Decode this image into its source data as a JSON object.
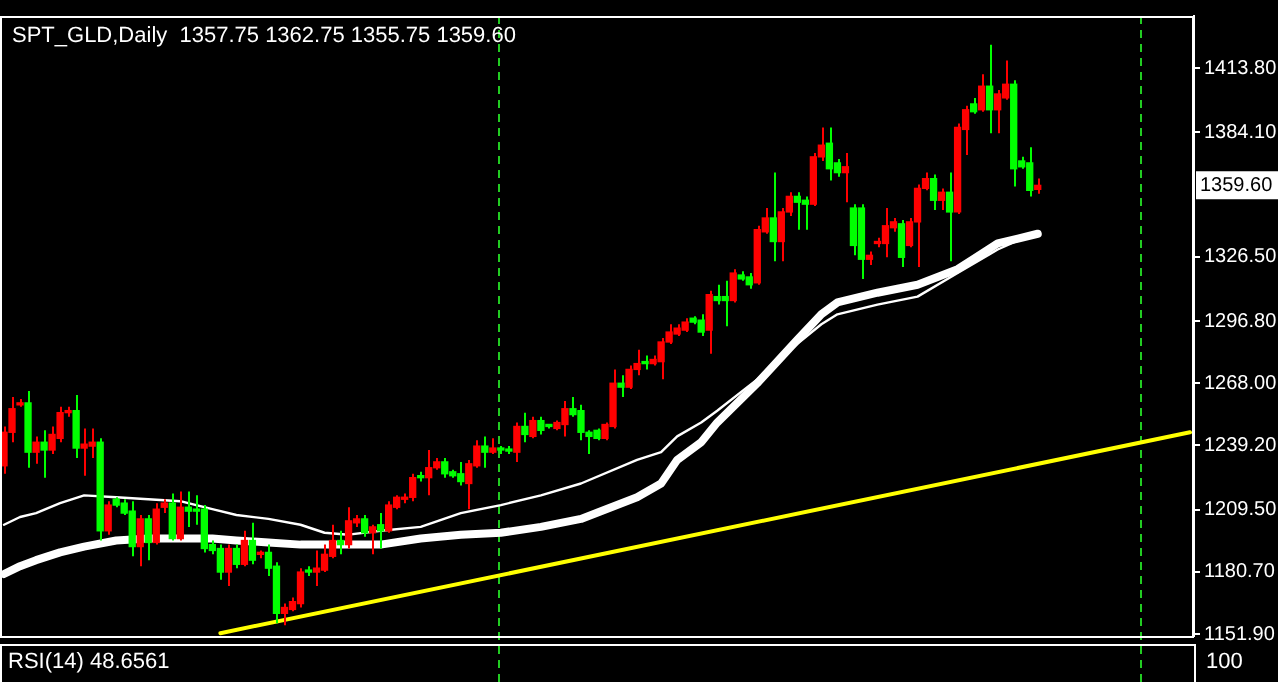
{
  "chart_data": {
    "type": "candlestick",
    "title": "SPT_GLD,Daily  1357.75 1362.75 1355.75 1359.60",
    "categories": [
      null,
      null,
      null,
      null,
      null,
      null,
      null,
      null,
      null,
      null,
      null,
      null,
      null,
      null,
      null,
      null,
      null,
      null,
      null,
      null,
      null,
      null,
      null,
      null,
      null,
      null,
      null,
      null,
      null,
      null,
      null,
      null,
      null,
      null,
      null,
      null,
      null,
      null,
      null,
      null,
      null,
      null,
      null,
      null,
      null,
      null,
      null,
      null,
      null,
      null,
      null,
      null,
      null,
      null,
      null,
      null,
      null,
      null,
      null,
      null,
      null,
      null,
      null,
      null,
      null,
      null,
      null,
      null,
      null,
      null,
      null,
      null,
      null,
      null,
      null,
      null,
      null,
      null,
      null,
      null,
      null,
      null,
      null,
      null,
      null,
      null,
      null,
      null,
      null,
      null,
      null,
      null,
      null,
      null,
      null,
      null,
      null,
      null,
      null,
      null,
      null,
      null,
      null,
      null,
      null,
      null,
      null,
      null,
      null,
      null,
      null,
      null,
      null,
      null,
      null,
      null,
      null,
      null,
      null,
      null,
      null,
      null,
      null,
      null,
      null,
      null,
      null,
      null,
      null,
      null,
      null,
      null,
      null,
      null,
      null,
      null,
      null,
      null,
      null,
      null,
      null,
      null,
      null,
      null,
      null,
      null,
      null,
      null,
      null
    ],
    "ohlc": [
      [
        1229.8,
        1248.0,
        1226.1,
        1245.3
      ],
      [
        1245.3,
        1261.6,
        1240.7,
        1256.2
      ],
      [
        1258.0,
        1260.7,
        1257.1,
        1258.9
      ],
      [
        1258.9,
        1264.4,
        1228.9,
        1236.1
      ],
      [
        1236.1,
        1243.4,
        1230.7,
        1240.7
      ],
      [
        1240.7,
        1246.2,
        1224.3,
        1237.1
      ],
      [
        1237.1,
        1248.0,
        1235.2,
        1244.3
      ],
      [
        1242.5,
        1257.1,
        1240.7,
        1254.4
      ],
      [
        1254.4,
        1257.1,
        1252.5,
        1255.3
      ],
      [
        1255.3,
        1262.6,
        1233.4,
        1238.0
      ],
      [
        1238.0,
        1247.1,
        1225.2,
        1239.8
      ],
      [
        1238.9,
        1247.1,
        1233.4,
        1240.7
      ],
      [
        1240.7,
        1242.5,
        1195.2,
        1199.7
      ],
      [
        1199.7,
        1213.4,
        1197.9,
        1211.6
      ],
      [
        1214.3,
        1215.2,
        1210.6,
        1211.6
      ],
      [
        1212.5,
        1214.3,
        1207.0,
        1207.9
      ],
      [
        1208.8,
        1213.4,
        1187.9,
        1192.4
      ],
      [
        1192.4,
        1207.0,
        1183.3,
        1205.2
      ],
      [
        1205.2,
        1207.0,
        1186.1,
        1194.3
      ],
      [
        1194.3,
        1212.5,
        1193.3,
        1209.7
      ],
      [
        1210.6,
        1214.3,
        1207.9,
        1212.5
      ],
      [
        1212.5,
        1217.0,
        1195.2,
        1196.1
      ],
      [
        1196.1,
        1217.9,
        1195.2,
        1210.6
      ],
      [
        1210.6,
        1217.9,
        1201.5,
        1208.8
      ],
      [
        1209.7,
        1216.1,
        1202.5,
        1208.8
      ],
      [
        1209.7,
        1211.6,
        1189.7,
        1191.5
      ],
      [
        1193.3,
        1195.2,
        1188.8,
        1190.6
      ],
      [
        1191.5,
        1193.3,
        1177.0,
        1180.6
      ],
      [
        1180.6,
        1193.3,
        1174.2,
        1191.5
      ],
      [
        1191.5,
        1193.3,
        1182.4,
        1184.2
      ],
      [
        1184.2,
        1199.7,
        1183.3,
        1195.2
      ],
      [
        1195.2,
        1203.4,
        1184.2,
        1186.1
      ],
      [
        1188.8,
        1190.6,
        1187.0,
        1189.7
      ],
      [
        1189.7,
        1193.3,
        1178.8,
        1182.4
      ],
      [
        1183.3,
        1185.1,
        1156.9,
        1161.5
      ],
      [
        1161.5,
        1166.0,
        1156.0,
        1164.2
      ],
      [
        1163.3,
        1168.8,
        1162.4,
        1166.9
      ],
      [
        1166.0,
        1182.4,
        1164.2,
        1180.6
      ],
      [
        1181.5,
        1183.3,
        1178.8,
        1180.6
      ],
      [
        1180.6,
        1190.6,
        1174.2,
        1182.4
      ],
      [
        1181.5,
        1193.3,
        1180.6,
        1188.8
      ],
      [
        1187.9,
        1202.5,
        1187.0,
        1195.2
      ],
      [
        1195.2,
        1199.7,
        1188.8,
        1193.3
      ],
      [
        1193.3,
        1210.6,
        1191.5,
        1204.3
      ],
      [
        1203.4,
        1207.0,
        1201.5,
        1205.2
      ],
      [
        1205.2,
        1207.0,
        1197.0,
        1198.8
      ],
      [
        1198.8,
        1202.5,
        1188.8,
        1201.5
      ],
      [
        1202.5,
        1207.9,
        1191.5,
        1199.7
      ],
      [
        1199.7,
        1213.4,
        1198.8,
        1211.6
      ],
      [
        1210.6,
        1216.1,
        1209.7,
        1215.2
      ],
      [
        1214.3,
        1217.0,
        1212.5,
        1215.2
      ],
      [
        1215.2,
        1226.1,
        1213.4,
        1224.3
      ],
      [
        1225.2,
        1227.0,
        1222.5,
        1224.3
      ],
      [
        1224.3,
        1237.1,
        1216.1,
        1228.9
      ],
      [
        1228.9,
        1233.4,
        1228.0,
        1231.6
      ],
      [
        1231.6,
        1233.4,
        1224.3,
        1226.1
      ],
      [
        1227.0,
        1228.0,
        1224.3,
        1225.2
      ],
      [
        1226.1,
        1231.6,
        1220.7,
        1222.5
      ],
      [
        1221.6,
        1232.5,
        1209.7,
        1230.7
      ],
      [
        1229.8,
        1241.6,
        1228.9,
        1238.9
      ],
      [
        1238.9,
        1243.4,
        1228.9,
        1236.1
      ],
      [
        1236.1,
        1242.5,
        1235.2,
        1238.0
      ],
      [
        1237.5,
        1238.9,
        1235.2,
        1237.1
      ],
      [
        1237.1,
        1238.9,
        1235.2,
        1236.6
      ],
      [
        1236.1,
        1249.8,
        1231.6,
        1248.0
      ],
      [
        1248.0,
        1254.4,
        1240.7,
        1244.3
      ],
      [
        1243.4,
        1252.5,
        1242.5,
        1250.7
      ],
      [
        1250.7,
        1252.5,
        1244.3,
        1246.2
      ],
      [
        1248.4,
        1248.9,
        1247.1,
        1248.0
      ],
      [
        1247.1,
        1250.7,
        1246.2,
        1249.8
      ],
      [
        1248.9,
        1259.8,
        1243.4,
        1256.2
      ],
      [
        1256.2,
        1261.6,
        1252.5,
        1253.5
      ],
      [
        1255.3,
        1258.0,
        1241.6,
        1245.3
      ],
      [
        1245.3,
        1246.2,
        1235.2,
        1243.4
      ],
      [
        1246.2,
        1247.1,
        1241.6,
        1242.5
      ],
      [
        1242.5,
        1249.8,
        1241.6,
        1248.9
      ],
      [
        1248.0,
        1274.4,
        1247.1,
        1268.0
      ],
      [
        1268.0,
        1271.7,
        1261.6,
        1266.2
      ],
      [
        1266.2,
        1276.2,
        1265.3,
        1274.4
      ],
      [
        1274.4,
        1283.5,
        1271.7,
        1277.1
      ],
      [
        1278.0,
        1280.8,
        1274.4,
        1277.1
      ],
      [
        1277.1,
        1280.8,
        1276.2,
        1279.0
      ],
      [
        1278.0,
        1289.0,
        1269.8,
        1287.1
      ],
      [
        1287.1,
        1295.3,
        1286.2,
        1291.7
      ],
      [
        1290.8,
        1295.3,
        1289.9,
        1293.5
      ],
      [
        1292.6,
        1298.1,
        1291.7,
        1296.3
      ],
      [
        1298.1,
        1299.0,
        1295.3,
        1296.3
      ],
      [
        1297.2,
        1299.9,
        1289.9,
        1291.7
      ],
      [
        1292.6,
        1310.8,
        1281.7,
        1309.0
      ],
      [
        1308.1,
        1313.6,
        1304.4,
        1306.3
      ],
      [
        1308.1,
        1315.4,
        1294.4,
        1306.3
      ],
      [
        1306.3,
        1320.8,
        1305.4,
        1319.0
      ],
      [
        1318.1,
        1319.9,
        1315.4,
        1316.3
      ],
      [
        1317.2,
        1319.0,
        1311.7,
        1313.6
      ],
      [
        1314.5,
        1340.9,
        1313.6,
        1339.1
      ],
      [
        1338.1,
        1349.1,
        1337.2,
        1344.5
      ],
      [
        1344.5,
        1365.5,
        1324.5,
        1333.6
      ],
      [
        1333.6,
        1349.1,
        1324.5,
        1347.3
      ],
      [
        1347.3,
        1356.4,
        1345.4,
        1354.5
      ],
      [
        1354.5,
        1356.4,
        1339.1,
        1351.8
      ],
      [
        1352.7,
        1354.5,
        1339.1,
        1350.9
      ],
      [
        1350.9,
        1374.6,
        1350.0,
        1372.8
      ],
      [
        1372.8,
        1386.4,
        1370.9,
        1378.2
      ],
      [
        1379.1,
        1386.4,
        1361.8,
        1367.3
      ],
      [
        1370.0,
        1371.8,
        1363.6,
        1365.5
      ],
      [
        1365.5,
        1374.6,
        1351.8,
        1368.2
      ],
      [
        1349.1,
        1350.9,
        1327.2,
        1331.8
      ],
      [
        1349.1,
        1350.9,
        1316.3,
        1325.4
      ],
      [
        1325.4,
        1329.0,
        1322.7,
        1327.2
      ],
      [
        1332.7,
        1335.4,
        1330.9,
        1333.6
      ],
      [
        1332.7,
        1349.1,
        1326.3,
        1340.9
      ],
      [
        1340.0,
        1344.5,
        1338.1,
        1342.7
      ],
      [
        1341.8,
        1343.6,
        1321.8,
        1326.3
      ],
      [
        1331.8,
        1344.5,
        1330.9,
        1342.7
      ],
      [
        1342.7,
        1360.0,
        1321.8,
        1358.2
      ],
      [
        1358.2,
        1365.5,
        1357.3,
        1362.7
      ],
      [
        1362.7,
        1364.6,
        1348.2,
        1352.7
      ],
      [
        1352.7,
        1358.2,
        1348.2,
        1356.4
      ],
      [
        1356.4,
        1365.5,
        1324.5,
        1347.3
      ],
      [
        1347.3,
        1388.2,
        1346.3,
        1386.4
      ],
      [
        1385.5,
        1396.4,
        1373.7,
        1394.6
      ],
      [
        1397.3,
        1400.1,
        1392.8,
        1393.7
      ],
      [
        1394.6,
        1411.0,
        1393.7,
        1405.5
      ],
      [
        1405.5,
        1424.7,
        1383.7,
        1394.6
      ],
      [
        1394.6,
        1403.7,
        1383.7,
        1401.9
      ],
      [
        1400.1,
        1417.4,
        1399.2,
        1406.4
      ],
      [
        1406.4,
        1408.3,
        1359.1,
        1367.3
      ],
      [
        1370.9,
        1372.8,
        1367.3,
        1368.2
      ],
      [
        1370.0,
        1377.3,
        1354.5,
        1357.3
      ],
      [
        1357.75,
        1362.75,
        1355.75,
        1359.6
      ],
      null,
      null,
      null,
      null,
      null,
      null,
      null,
      null,
      null,
      null,
      null,
      null,
      null,
      null,
      null,
      null,
      null,
      null,
      null
    ],
    "colors": [
      "#ff0000",
      "#ff0000",
      "#ff0000",
      "#00ff00",
      "#ff0000",
      "#00ff00",
      "#ff0000",
      "#ff0000",
      "#ff0000",
      "#00ff00",
      "#ff0000",
      "#ff0000",
      "#00ff00",
      "#ff0000",
      "#00ff00",
      "#00ff00",
      "#00ff00",
      "#ff0000",
      "#00ff00",
      "#ff0000",
      "#ff0000",
      "#00ff00",
      "#ff0000",
      "#00ff00",
      "#00ff00",
      "#00ff00",
      "#00ff00",
      "#00ff00",
      "#ff0000",
      "#00ff00",
      "#ff0000",
      "#00ff00",
      "#ff0000",
      "#00ff00",
      "#00ff00",
      "#ff0000",
      "#ff0000",
      "#ff0000",
      "#00ff00",
      "#ff0000",
      "#ff0000",
      "#ff0000",
      "#00ff00",
      "#ff0000",
      "#ff0000",
      "#00ff00",
      "#ff0000",
      "#00ff00",
      "#ff0000",
      "#ff0000",
      "#ff0000",
      "#ff0000",
      "#00ff00",
      "#ff0000",
      "#ff0000",
      "#00ff00",
      "#00ff00",
      "#00ff00",
      "#ff0000",
      "#ff0000",
      "#00ff00",
      "#ff0000",
      "#00ff00",
      "#00ff00",
      "#ff0000",
      "#00ff00",
      "#ff0000",
      "#00ff00",
      "#00ff00",
      "#ff0000",
      "#ff0000",
      "#00ff00",
      "#00ff00",
      "#00ff00",
      "#00ff00",
      "#ff0000",
      "#ff0000",
      "#00ff00",
      "#ff0000",
      "#ff0000",
      "#00ff00",
      "#ff0000",
      "#ff0000",
      "#ff0000",
      "#ff0000",
      "#ff0000",
      "#00ff00",
      "#00ff00",
      "#ff0000",
      "#00ff00",
      "#00ff00",
      "#ff0000",
      "#00ff00",
      "#00ff00",
      "#ff0000",
      "#ff0000",
      "#00ff00",
      "#ff0000",
      "#ff0000",
      "#00ff00",
      "#00ff00",
      "#ff0000",
      "#ff0000",
      "#00ff00",
      "#00ff00",
      "#ff0000",
      "#00ff00",
      "#00ff00",
      "#ff0000",
      "#ff0000",
      "#ff0000",
      "#ff0000",
      "#00ff00",
      "#ff0000",
      "#ff0000",
      "#ff0000",
      "#00ff00",
      "#ff0000",
      "#00ff00",
      "#ff0000",
      "#ff0000",
      "#00ff00",
      "#ff0000",
      "#00ff00",
      "#ff0000",
      "#ff0000",
      "#00ff00",
      "#00ff00",
      "#00ff00",
      "#ff0000",
      null,
      null,
      null,
      null,
      null,
      null,
      null,
      null,
      null,
      null,
      null,
      null,
      null,
      null,
      null,
      null,
      null,
      null,
      null
    ],
    "series": [
      {
        "type": "line",
        "color": "#ffffff",
        "values": [
          1202.5,
          null,
          1206.1,
          null,
          1207.9,
          null,
          null,
          1212.5,
          null,
          null,
          1216.1,
          null,
          null,
          null,
          1215.2,
          null,
          null,
          null,
          1214.3,
          null,
          null,
          null,
          1213.4,
          null,
          null,
          null,
          1209.7,
          null,
          null,
          1207.0,
          null,
          null,
          null,
          1205.2,
          null,
          null,
          null,
          1202.5,
          null,
          null,
          1198.8,
          null,
          null,
          1197.9,
          null,
          null,
          null,
          1199.7,
          null,
          null,
          null,
          null,
          1201.5,
          null,
          null,
          null,
          null,
          1207.9,
          null,
          null,
          null,
          null,
          1211.6,
          null,
          null,
          null,
          null,
          1216.1,
          null,
          null,
          null,
          null,
          1221.6,
          null,
          null,
          null,
          null,
          null,
          null,
          1232.5,
          null,
          null,
          1236.1,
          null,
          1243.4,
          null,
          null,
          1249.8,
          null,
          1255.3,
          null,
          null,
          null,
          null,
          1269.8,
          null,
          null,
          null,
          null,
          1286.2,
          null,
          null,
          1295.3,
          null,
          1299.9,
          null,
          null,
          null,
          null,
          1304.4,
          null,
          null,
          null,
          null,
          1308.1,
          null,
          null,
          null,
          null,
          1319.0,
          null,
          null,
          null,
          null,
          1329.9,
          null,
          null,
          null,
          null,
          1338.1,
          null,
          null,
          null,
          null,
          null,
          null,
          null,
          null,
          null,
          null,
          null,
          null,
          null,
          null,
          null,
          null,
          null,
          null,
          null
        ]
      },
      {
        "type": "line",
        "color": "#ffffff",
        "values": [
          1179.7,
          null,
          1183.3,
          null,
          1186.1,
          null,
          null,
          1189.7,
          null,
          null,
          1192.4,
          null,
          null,
          null,
          1195.2,
          null,
          null,
          null,
          1196.1,
          null,
          null,
          null,
          1196.1,
          null,
          null,
          null,
          1196.1,
          null,
          null,
          1195.2,
          null,
          null,
          null,
          1194.3,
          null,
          null,
          null,
          1193.3,
          null,
          null,
          1193.3,
          null,
          null,
          1193.3,
          null,
          null,
          null,
          1193.3,
          null,
          null,
          null,
          null,
          1196.1,
          null,
          null,
          null,
          null,
          1197.9,
          null,
          null,
          null,
          null,
          1198.8,
          null,
          null,
          null,
          null,
          1201.5,
          null,
          null,
          null,
          null,
          1205.2,
          null,
          null,
          null,
          null,
          null,
          null,
          1215.2,
          null,
          null,
          1221.6,
          null,
          1232.5,
          null,
          null,
          1240.7,
          null,
          1249.8,
          null,
          null,
          null,
          null,
          1268.0,
          null,
          null,
          null,
          null,
          1288.1,
          null,
          null,
          1299.9,
          null,
          1305.4,
          null,
          null,
          null,
          null,
          1309.9,
          null,
          null,
          null,
          null,
          1313.6,
          null,
          null,
          null,
          null,
          1320.8,
          null,
          null,
          null,
          null,
          1332.7,
          null,
          null,
          null,
          null,
          1337.2,
          null,
          null,
          null,
          null,
          null,
          null,
          null,
          null,
          null,
          null,
          null,
          null,
          null,
          null,
          null,
          null,
          null,
          null,
          null
        ]
      },
      {
        "type": "line",
        "color": "#ffff00",
        "values": [
          null,
          null,
          null,
          null,
          null,
          null,
          null,
          null,
          null,
          null,
          null,
          null,
          null,
          null,
          null,
          null,
          null,
          null,
          null,
          null,
          null,
          null,
          null,
          null,
          null,
          null,
          null,
          1152.3,
          null,
          null,
          null,
          null,
          null,
          null,
          null,
          null,
          null,
          null,
          null,
          null,
          null,
          null,
          null,
          null,
          null,
          null,
          null,
          null,
          null,
          null,
          null,
          null,
          null,
          null,
          null,
          null,
          null,
          null,
          null,
          null,
          null,
          null,
          null,
          null,
          null,
          null,
          null,
          null,
          null,
          null,
          null,
          null,
          null,
          null,
          null,
          null,
          null,
          null,
          null,
          null,
          null,
          null,
          null,
          null,
          null,
          null,
          null,
          null,
          null,
          null,
          null,
          null,
          null,
          null,
          null,
          null,
          null,
          null,
          null,
          null,
          null,
          null,
          null,
          null,
          null,
          null,
          null,
          null,
          null,
          null,
          null,
          null,
          null,
          null,
          null,
          null,
          null,
          null,
          null,
          null,
          null,
          null,
          null,
          null,
          null,
          null,
          null,
          null,
          null,
          null,
          null,
          null,
          null,
          null,
          null,
          null,
          null,
          null,
          null,
          null,
          null,
          null,
          null,
          null,
          null,
          null,
          null,
          null,
          1245.3
        ]
      }
    ],
    "ylim": [
      1151,
      1438
    ],
    "yticks": [
      {
        "value": 1151.9,
        "label": "1151.90"
      },
      {
        "value": 1180.7,
        "label": "1180.70"
      },
      {
        "value": 1209.5,
        "label": "1209.50"
      },
      {
        "value": 1239.2,
        "label": "1239.20"
      },
      {
        "value": 1268,
        "label": "1268.00"
      },
      {
        "value": 1296.8,
        "label": "1296.80"
      },
      {
        "value": 1326.5,
        "label": "1326.50"
      },
      {
        "value": 1384.1,
        "label": "1384.10"
      },
      {
        "value": 1413.8,
        "label": "1413.80"
      }
    ],
    "annotations": [
      "RSI(14) 48.6561",
      "100",
      {
        "text": "1359.60",
        "y": 1359.6
      }
    ]
  }
}
